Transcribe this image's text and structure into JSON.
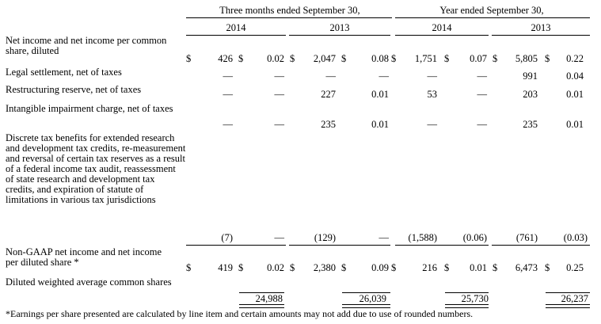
{
  "header": {
    "group_quarter": "Three months ended September 30,",
    "group_year": "Year ended September 30,",
    "years": [
      "2014",
      "2013",
      "2014",
      "2013"
    ]
  },
  "rows": [
    {
      "label": "Net income and net income per common share, diluted",
      "cells": [
        "426",
        "0.02",
        "2,047",
        "0.08",
        "1,751",
        "0.07",
        "5,805",
        "0.22"
      ],
      "dollar": true
    },
    {
      "label": "Legal settlement, net of taxes",
      "cells": [
        "—",
        "—",
        "—",
        "—",
        "—",
        "—",
        "991",
        "0.04"
      ],
      "dollar": false
    },
    {
      "label": "Restructuring reserve, net of taxes",
      "cells": [
        "—",
        "—",
        "227",
        "0.01",
        "53",
        "—",
        "203",
        "0.01"
      ],
      "dollar": false
    },
    {
      "label": "Intangible impairment charge, net of taxes",
      "cells": [
        "—",
        "—",
        "235",
        "0.01",
        "—",
        "—",
        "235",
        "0.01"
      ],
      "dollar": false
    },
    {
      "label": "Discrete tax benefits for extended research and development tax credits, re-measurement and reversal of certain tax reserves as a result of a federal income tax audit, reassessment of state research and development tax credits, and expiration of statute of limitations in various tax jurisdictions",
      "cells": [
        "(7)",
        "—",
        "(129)",
        "—",
        "(1,588)",
        "(0.06)",
        "(761)",
        "(0.03)"
      ],
      "dollar": false
    },
    {
      "label": "Non-GAAP net income and net income per diluted share *",
      "cells": [
        "419",
        "0.02",
        "2,380",
        "0.09",
        "216",
        "0.01",
        "6,473",
        "0.25"
      ],
      "dollar": true
    },
    {
      "label": "Diluted weighted average common shares",
      "cells": [
        "24,988",
        "26,039",
        "25,730",
        "26,237"
      ],
      "dollar": false
    }
  ],
  "currency_symbol": "$",
  "footnote": "*Earnings per share presented are calculated by line item and certain amounts may not add due to use of rounded numbers."
}
